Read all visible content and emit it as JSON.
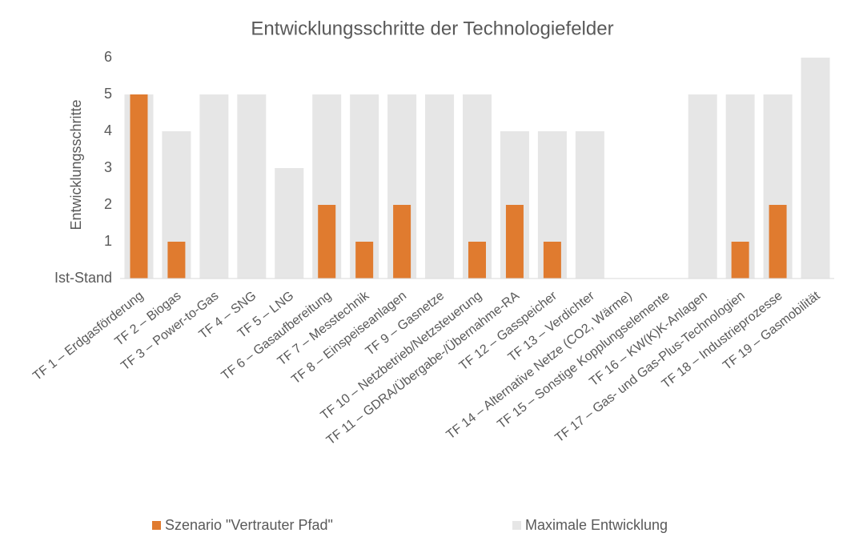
{
  "chart_data": {
    "type": "bar",
    "title": "Entwicklungsschritte der Technologiefelder",
    "y_label": "Entwicklungsschritte",
    "categories": [
      "TF 1 – Erdgasförderung",
      "TF 2 – Biogas",
      "TF 3 – Power-to-Gas",
      "TF 4 – SNG",
      "TF 5 – LNG",
      "TF 6 – Gasaufbereitung",
      "TF 7 – Messtechnik",
      "TF 8 – Einspeiseanlagen",
      "TF 9 – Gasnetze",
      "TF 10 – Netzbetrieb/Netzsteuerung",
      "TF 11 – GDRA/Übergabe-/Übernahme-RA",
      "TF 12 – Gasspeicher",
      "TF 13 – Verdichter",
      "TF 14 – Alternative Netze (CO2, Wärme)",
      "TF 15 – Sonstige Kopplungselemente",
      "TF 16 – KW(K)K-Anlagen",
      "TF 17 – Gas- und Gas-Plus-Technologien",
      "TF 18 – Industrieprozesse",
      "TF 19 – Gasmobilität"
    ],
    "series": [
      {
        "name": "Szenario \"Vertrauter Pfad\"",
        "color": "#e07b2f",
        "values": [
          5,
          1,
          0,
          0,
          0,
          2,
          1,
          2,
          0,
          1,
          2,
          1,
          0,
          0,
          0,
          0,
          1,
          2,
          0
        ]
      },
      {
        "name": "Maximale Entwicklung",
        "color": "#e6e6e6",
        "values": [
          5,
          4,
          5,
          5,
          3,
          5,
          5,
          5,
          5,
          5,
          4,
          4,
          4,
          0,
          0,
          5,
          5,
          5,
          6
        ]
      }
    ],
    "ylim": [
      0,
      6
    ],
    "yticks": [
      {
        "value": 0,
        "label": "Ist-Stand"
      },
      1,
      2,
      3,
      4,
      5,
      6
    ],
    "grid": false,
    "legend": "bottom"
  }
}
